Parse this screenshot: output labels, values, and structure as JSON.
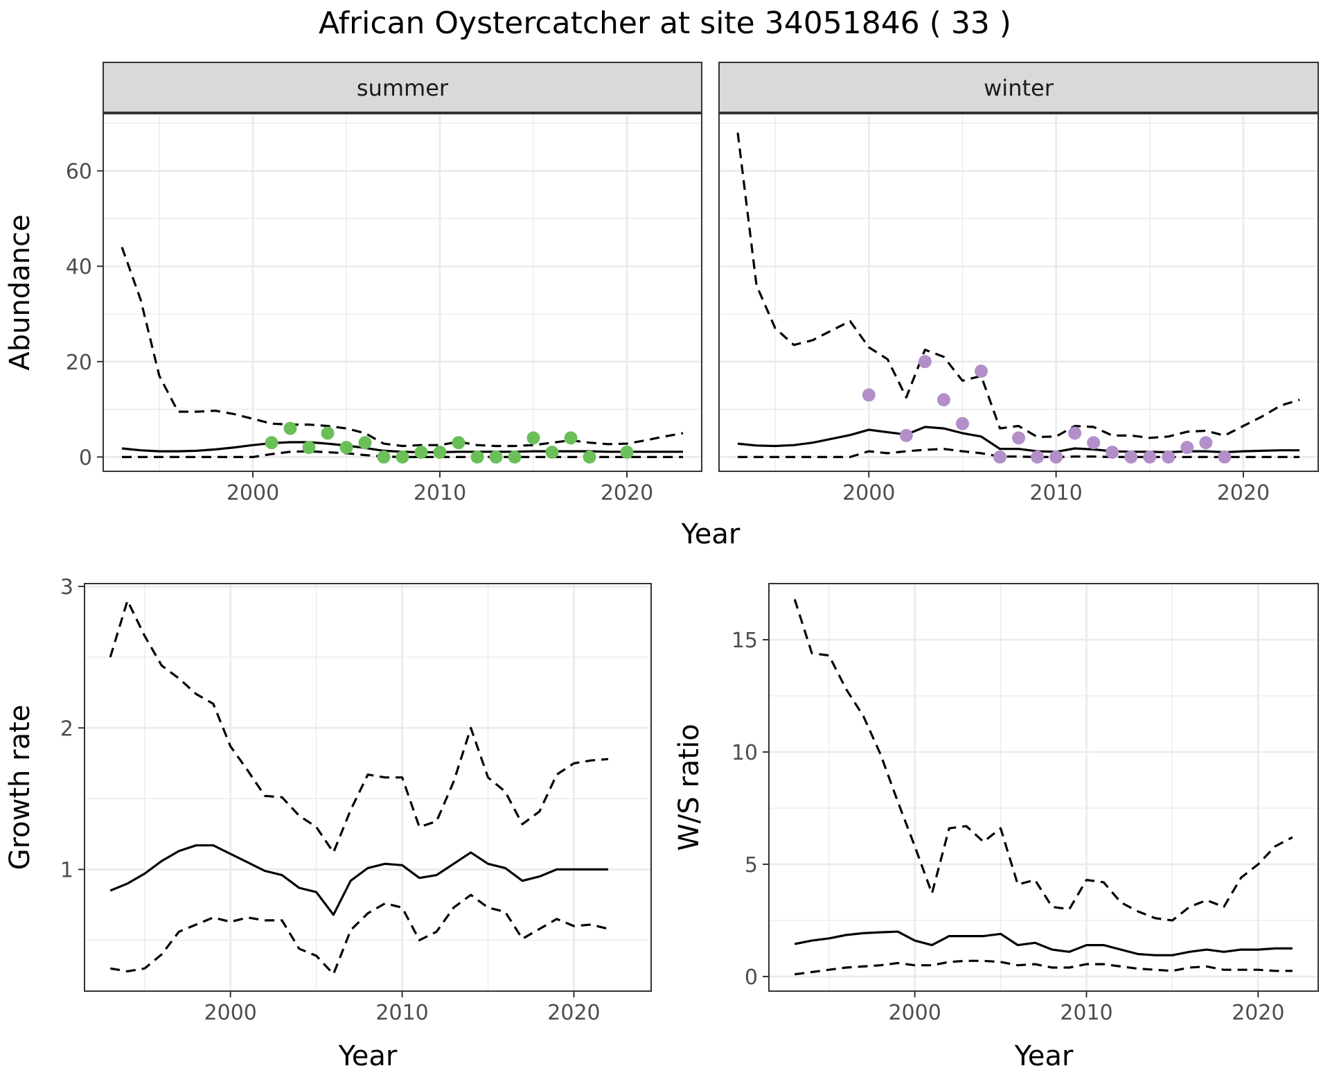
{
  "title": "African Oystercatcher at site 34051846 ( 33 )",
  "colors": {
    "summer_points": "#6abf59",
    "winter_points": "#b28fc9",
    "line": "#000000",
    "strip": "#d9d9d9",
    "grid": "#ebebeb"
  },
  "chart_data": [
    {
      "type": "line",
      "panel": "summer",
      "strip_label": "summer",
      "xlabel": "Year",
      "ylabel": "Abundance",
      "xlim": [
        1992,
        2024
      ],
      "ylim": [
        -3,
        72
      ],
      "x_ticks": [
        2000,
        2010,
        2020
      ],
      "y_ticks": [
        0,
        20,
        40,
        60
      ],
      "grid": true,
      "x": [
        1993,
        1994,
        1995,
        1996,
        1997,
        1998,
        1999,
        2000,
        2001,
        2002,
        2003,
        2004,
        2005,
        2006,
        2007,
        2008,
        2009,
        2010,
        2011,
        2012,
        2013,
        2014,
        2015,
        2016,
        2017,
        2018,
        2019,
        2020,
        2021,
        2022,
        2023
      ],
      "series": [
        {
          "role": "estimate",
          "style": "solid",
          "values": [
            1.8,
            1.4,
            1.2,
            1.2,
            1.3,
            1.6,
            2.0,
            2.5,
            2.9,
            3.1,
            3.1,
            2.8,
            2.4,
            1.9,
            1.3,
            1.1,
            1.0,
            1.0,
            1.1,
            1.1,
            1.1,
            1.1,
            1.2,
            1.2,
            1.2,
            1.2,
            1.1,
            1.1,
            1.1,
            1.1,
            1.1
          ]
        },
        {
          "role": "upper",
          "style": "dashed",
          "values": [
            44,
            33,
            17,
            9.5,
            9.5,
            9.7,
            9,
            8,
            7,
            6.8,
            6.8,
            6.5,
            6,
            5,
            2.8,
            2.3,
            2.5,
            2.5,
            3.2,
            2.5,
            2.3,
            2.3,
            2.5,
            3,
            3.5,
            3,
            2.7,
            2.8,
            3.5,
            4.3,
            5
          ]
        },
        {
          "role": "lower",
          "style": "dashed",
          "values": [
            0,
            0,
            0,
            0,
            0,
            0,
            0,
            0,
            0.6,
            1.1,
            1.2,
            1.0,
            0.8,
            0.4,
            0.1,
            0,
            0,
            0,
            0,
            0,
            0,
            0,
            0,
            0,
            0,
            0,
            0,
            0,
            0,
            0,
            0
          ]
        }
      ],
      "points": {
        "x": [
          2001,
          2002,
          2003,
          2004,
          2005,
          2006,
          2007,
          2008,
          2009,
          2010,
          2011,
          2012,
          2013,
          2014,
          2015,
          2016,
          2017,
          2018,
          2020
        ],
        "y": [
          3,
          6,
          2,
          5,
          2,
          3,
          0,
          0,
          1,
          1,
          3,
          0,
          0,
          0,
          4,
          1,
          4,
          0,
          1
        ]
      }
    },
    {
      "type": "line",
      "panel": "winter",
      "strip_label": "winter",
      "xlabel": "Year",
      "ylabel": "Abundance",
      "xlim": [
        1992,
        2024
      ],
      "ylim": [
        -3,
        72
      ],
      "x_ticks": [
        2000,
        2010,
        2020
      ],
      "y_ticks": [
        0,
        20,
        40,
        60
      ],
      "grid": true,
      "x": [
        1993,
        1994,
        1995,
        1996,
        1997,
        1998,
        1999,
        2000,
        2001,
        2002,
        2003,
        2004,
        2005,
        2006,
        2007,
        2008,
        2009,
        2010,
        2011,
        2012,
        2013,
        2014,
        2015,
        2016,
        2017,
        2018,
        2019,
        2020,
        2021,
        2022,
        2023
      ],
      "series": [
        {
          "role": "estimate",
          "style": "solid",
          "values": [
            2.8,
            2.4,
            2.3,
            2.5,
            3,
            3.8,
            4.6,
            5.7,
            5.2,
            4.7,
            6.3,
            6,
            5,
            4.3,
            1.7,
            1.7,
            1.2,
            1.1,
            1.8,
            1.6,
            1.2,
            1.1,
            1.1,
            1.0,
            1.2,
            1.2,
            1.0,
            1.2,
            1.3,
            1.4,
            1.4
          ]
        },
        {
          "role": "upper",
          "style": "dashed",
          "values": [
            68,
            36,
            27,
            23.5,
            24.5,
            26.5,
            28.5,
            23,
            20.5,
            12.5,
            22.5,
            21,
            16,
            17,
            6,
            6.5,
            4.2,
            4.3,
            6.5,
            6.3,
            4.5,
            4.5,
            4,
            4.3,
            5.3,
            5.5,
            4.5,
            6.5,
            8.5,
            10.8,
            12
          ]
        },
        {
          "role": "lower",
          "style": "dashed",
          "values": [
            0,
            0,
            0,
            0,
            0,
            0,
            0,
            1.2,
            0.8,
            1.2,
            1.5,
            1.7,
            1.2,
            0.8,
            0.1,
            0.1,
            0,
            0,
            0.1,
            0.1,
            0,
            0,
            0,
            0,
            0,
            0,
            0,
            0,
            0,
            0,
            0
          ]
        }
      ],
      "points": {
        "x": [
          2000,
          2002,
          2003,
          2004,
          2005,
          2006,
          2007,
          2008,
          2009,
          2010,
          2011,
          2012,
          2013,
          2014,
          2015,
          2016,
          2017,
          2018,
          2019
        ],
        "y": [
          13,
          4.5,
          20,
          12,
          7,
          18,
          0,
          4,
          0,
          0,
          5,
          3,
          1,
          0,
          0,
          0,
          2,
          3,
          0
        ]
      }
    },
    {
      "type": "line",
      "panel": "growth",
      "xlabel": "Year",
      "ylabel": "Growth rate",
      "xlim": [
        1991.5,
        2024.5
      ],
      "ylim": [
        0.14,
        3.02
      ],
      "x_ticks": [
        2000,
        2010,
        2020
      ],
      "y_ticks": [
        1,
        2,
        3
      ],
      "grid": true,
      "x": [
        1993,
        1994,
        1995,
        1996,
        1997,
        1998,
        1999,
        2000,
        2001,
        2002,
        2003,
        2004,
        2005,
        2006,
        2007,
        2008,
        2009,
        2010,
        2011,
        2012,
        2013,
        2014,
        2015,
        2016,
        2017,
        2018,
        2019,
        2020,
        2021,
        2022
      ],
      "series": [
        {
          "role": "estimate",
          "style": "solid",
          "values": [
            0.85,
            0.9,
            0.97,
            1.06,
            1.13,
            1.17,
            1.17,
            1.11,
            1.05,
            0.99,
            0.96,
            0.87,
            0.84,
            0.68,
            0.92,
            1.01,
            1.04,
            1.03,
            0.94,
            0.96,
            1.04,
            1.12,
            1.04,
            1.01,
            0.92,
            0.95,
            1.0,
            1.0,
            1.0,
            1.0
          ]
        },
        {
          "role": "upper",
          "style": "dashed",
          "values": [
            2.5,
            2.9,
            2.65,
            2.44,
            2.35,
            2.24,
            2.17,
            1.87,
            1.7,
            1.52,
            1.51,
            1.38,
            1.3,
            1.12,
            1.42,
            1.67,
            1.65,
            1.65,
            1.3,
            1.34,
            1.62,
            2.0,
            1.65,
            1.55,
            1.32,
            1.41,
            1.67,
            1.75,
            1.77,
            1.78
          ]
        },
        {
          "role": "lower",
          "style": "dashed",
          "values": [
            0.3,
            0.28,
            0.3,
            0.4,
            0.56,
            0.61,
            0.66,
            0.63,
            0.66,
            0.64,
            0.64,
            0.44,
            0.39,
            0.26,
            0.57,
            0.69,
            0.76,
            0.73,
            0.5,
            0.56,
            0.73,
            0.82,
            0.73,
            0.7,
            0.51,
            0.58,
            0.65,
            0.6,
            0.61,
            0.58
          ]
        }
      ]
    },
    {
      "type": "line",
      "panel": "ratio",
      "xlabel": "Year",
      "ylabel": "W/S ratio",
      "xlim": [
        1991.5,
        2023.5
      ],
      "ylim": [
        -0.65,
        17.5
      ],
      "x_ticks": [
        2000,
        2010,
        2020
      ],
      "y_ticks": [
        0,
        5,
        10,
        15
      ],
      "grid": true,
      "x": [
        1993,
        1994,
        1995,
        1996,
        1997,
        1998,
        1999,
        2000,
        2001,
        2002,
        2003,
        2004,
        2005,
        2006,
        2007,
        2008,
        2009,
        2010,
        2011,
        2012,
        2013,
        2014,
        2015,
        2016,
        2017,
        2018,
        2019,
        2020,
        2021,
        2022
      ],
      "series": [
        {
          "role": "estimate",
          "style": "solid",
          "values": [
            1.45,
            1.6,
            1.7,
            1.85,
            1.93,
            1.97,
            2.0,
            1.6,
            1.4,
            1.8,
            1.8,
            1.8,
            1.9,
            1.4,
            1.5,
            1.2,
            1.1,
            1.4,
            1.4,
            1.2,
            1.0,
            0.95,
            0.95,
            1.1,
            1.2,
            1.1,
            1.2,
            1.2,
            1.25,
            1.25
          ]
        },
        {
          "role": "upper",
          "style": "dashed",
          "values": [
            16.8,
            14.4,
            14.3,
            12.8,
            11.6,
            9.9,
            7.8,
            5.8,
            3.7,
            6.6,
            6.7,
            6.0,
            6.6,
            4.1,
            4.3,
            3.1,
            3.0,
            4.3,
            4.2,
            3.3,
            2.9,
            2.6,
            2.5,
            3.1,
            3.4,
            3.1,
            4.4,
            5.0,
            5.8,
            6.2
          ]
        },
        {
          "role": "lower",
          "style": "dashed",
          "values": [
            0.1,
            0.2,
            0.3,
            0.4,
            0.45,
            0.5,
            0.6,
            0.5,
            0.5,
            0.65,
            0.7,
            0.7,
            0.65,
            0.5,
            0.55,
            0.4,
            0.4,
            0.55,
            0.55,
            0.45,
            0.35,
            0.3,
            0.25,
            0.4,
            0.45,
            0.3,
            0.3,
            0.3,
            0.25,
            0.25
          ]
        }
      ]
    }
  ]
}
